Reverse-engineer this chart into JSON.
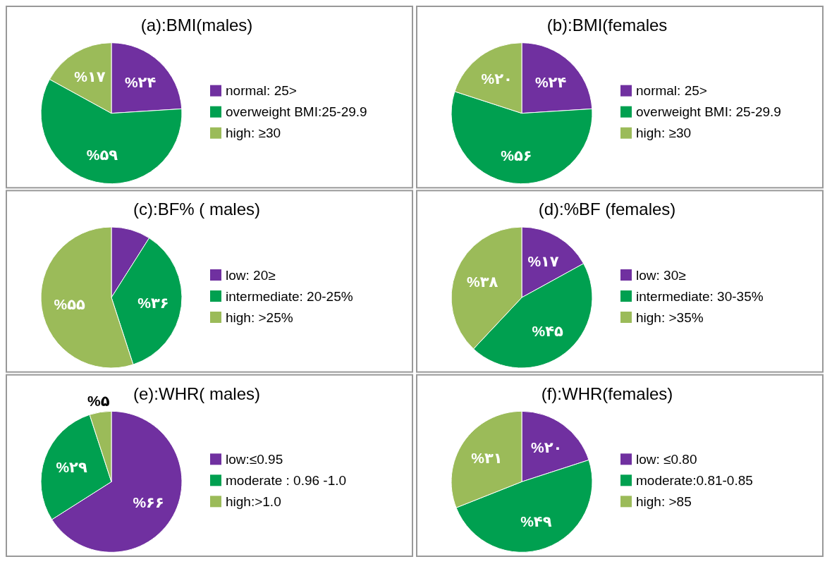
{
  "chart_data": [
    {
      "type": "pie",
      "title": "(a):BMI(males)",
      "categories": [
        "normal: 25>",
        "overweight BMI:25-29.9",
        "high: ≥30"
      ],
      "values": [
        24,
        59,
        17
      ],
      "colors": [
        "#7030a0",
        "#00a050",
        "#9bbb59"
      ],
      "value_labels": [
        "%۲۴",
        "%۵۹",
        "%۱۷"
      ],
      "legend": "right"
    },
    {
      "type": "pie",
      "title": "(b):BMI(females",
      "categories": [
        "normal: 25>",
        "overweight BMI: 25-29.9",
        "high: ≥30"
      ],
      "values": [
        24,
        56,
        20
      ],
      "colors": [
        "#7030a0",
        "#00a050",
        "#9bbb59"
      ],
      "value_labels": [
        "%۲۴",
        "%۵۶",
        "%۲۰"
      ],
      "legend": "right"
    },
    {
      "type": "pie",
      "title": "(c):BF% ( males)",
      "categories": [
        "low: 20≥",
        "intermediate: 20-25%",
        "high: >25%"
      ],
      "values": [
        9,
        36,
        55
      ],
      "colors": [
        "#7030a0",
        "#00a050",
        "#9bbb59"
      ],
      "value_labels": [
        null,
        "%۳۶",
        "%۵۵"
      ],
      "legend": "right"
    },
    {
      "type": "pie",
      "title": "(d):%BF (females)",
      "categories": [
        "low: 30≥",
        "intermediate: 30-35%",
        "high: >35%"
      ],
      "values": [
        17,
        45,
        38
      ],
      "colors": [
        "#7030a0",
        "#00a050",
        "#9bbb59"
      ],
      "value_labels": [
        "%۱۷",
        "%۴۵",
        "%۳۸"
      ],
      "legend": "right"
    },
    {
      "type": "pie",
      "title": "(e):WHR( males)",
      "categories": [
        "low:≤0.95",
        "moderate : 0.96 -1.0",
        "high:>1.0"
      ],
      "values": [
        66,
        29,
        5
      ],
      "colors": [
        "#7030a0",
        "#00a050",
        "#9bbb59"
      ],
      "value_labels": [
        "%۶۶",
        "%۲۹",
        "%۵"
      ],
      "legend": "right"
    },
    {
      "type": "pie",
      "title": "(f):WHR(females)",
      "categories": [
        "low: ≤0.80",
        "moderate:0.81-0.85",
        "high: >85"
      ],
      "values": [
        20,
        49,
        31
      ],
      "colors": [
        "#7030a0",
        "#00a050",
        "#9bbb59"
      ],
      "value_labels": [
        "%۲۰",
        "%۴۹",
        "%۳۱"
      ],
      "legend": "right"
    }
  ]
}
